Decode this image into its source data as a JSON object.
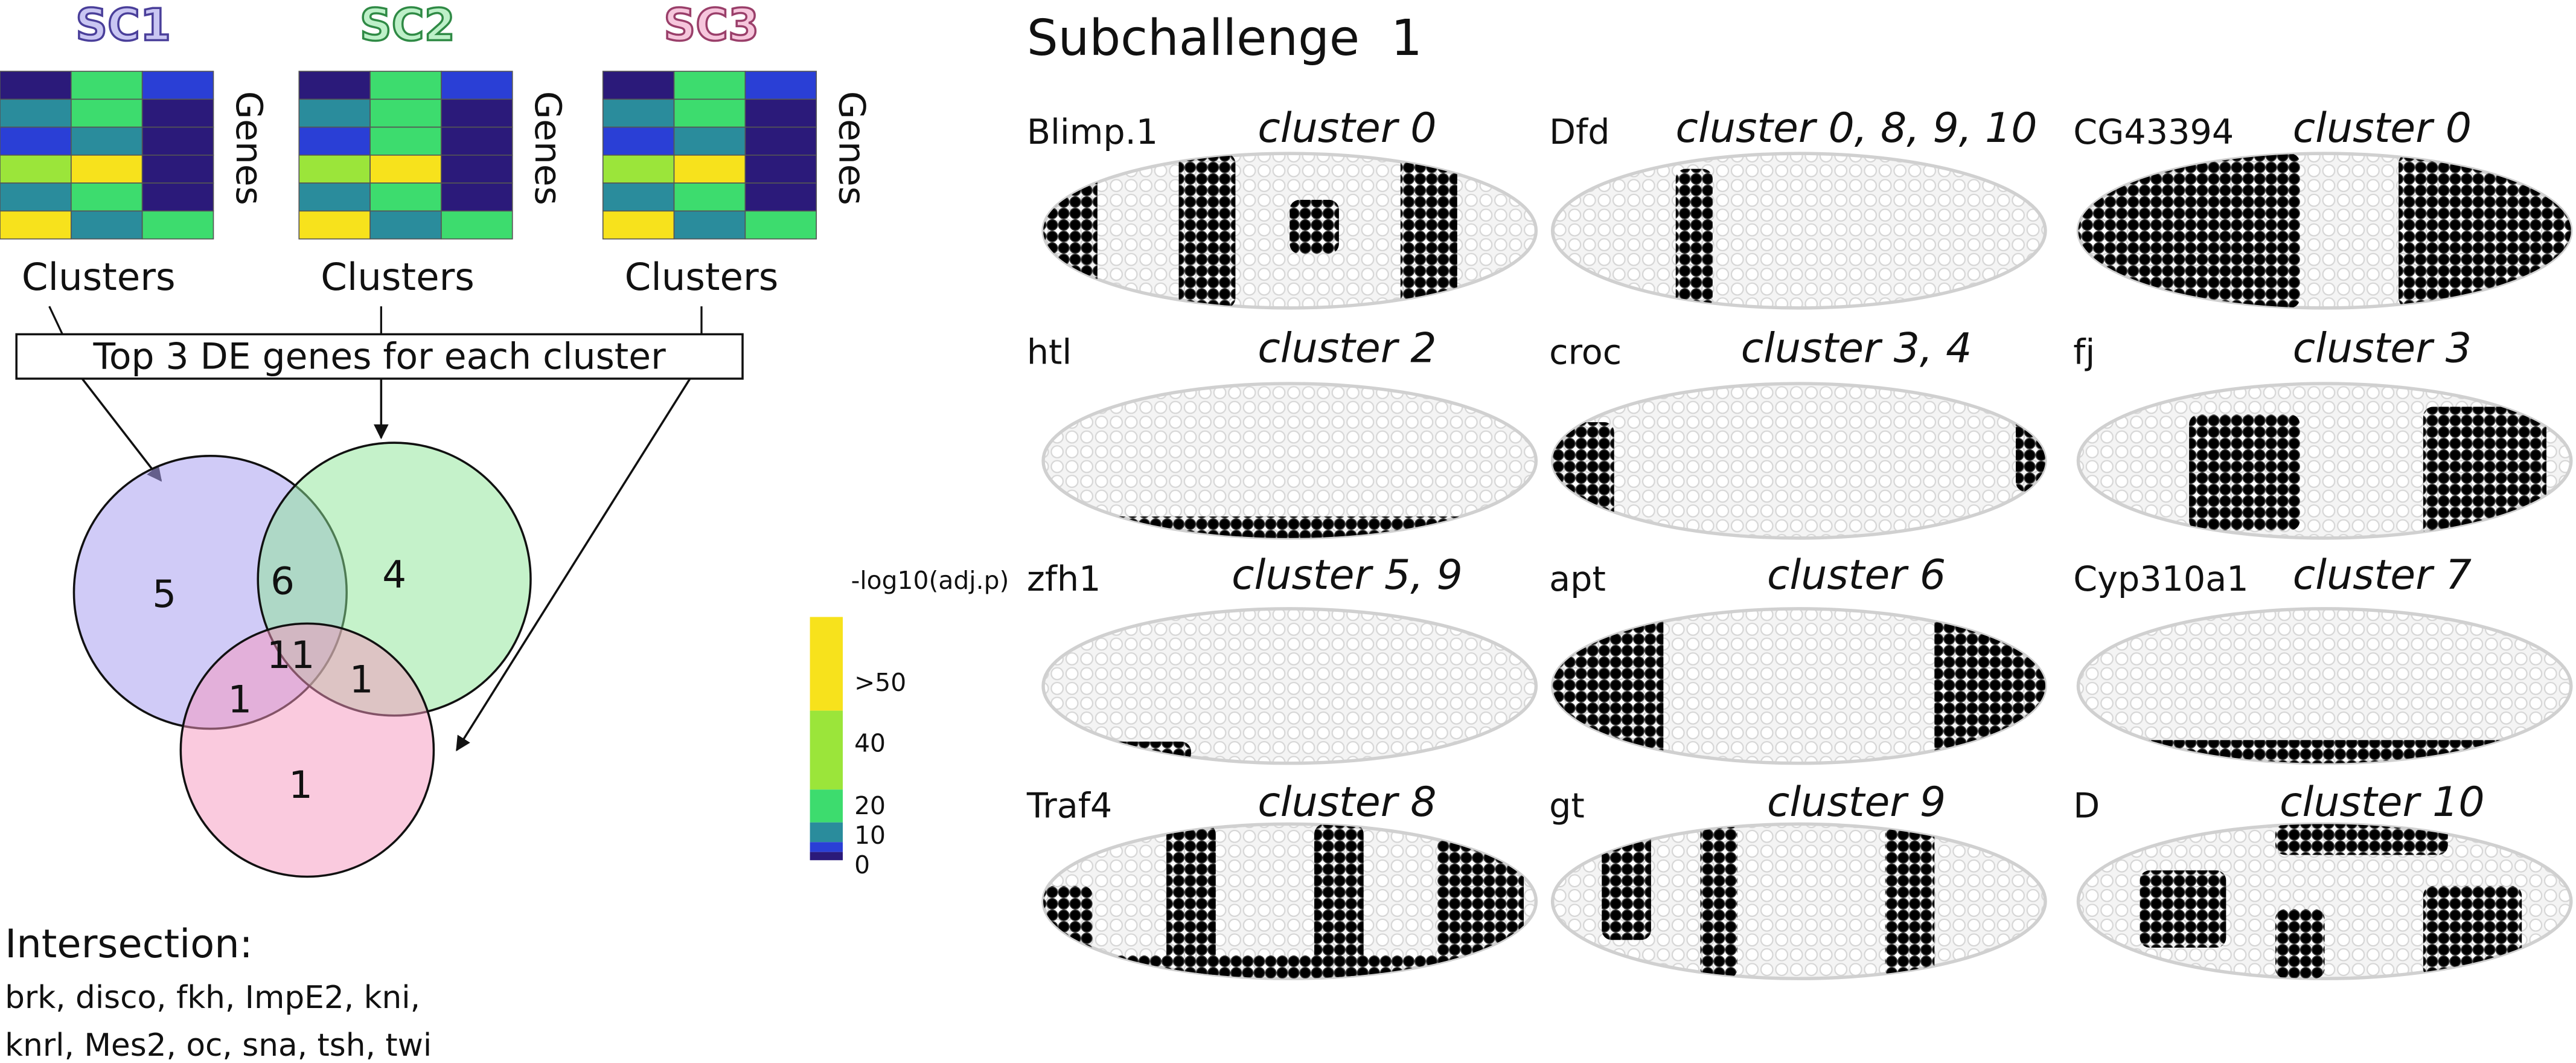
{
  "left": {
    "heatmaps": [
      {
        "label": "SC1",
        "genes_label": "Genes",
        "clusters_label": "Clusters"
      },
      {
        "label": "SC2",
        "genes_label": "Genes",
        "clusters_label": "Clusters"
      },
      {
        "label": "SC3",
        "genes_label": "Genes",
        "clusters_label": "Clusters"
      }
    ],
    "box_text": "Top 3 DE genes for each cluster",
    "venn": {
      "sc1_only": 5,
      "sc1_sc2": 6,
      "sc2_only": 4,
      "all": 11,
      "sc1_sc3": 1,
      "sc2_sc3": 1,
      "sc3_only": 1
    },
    "colorbar": {
      "title": "-log10(adj.p)",
      "labels": [
        ">50",
        "40",
        "20",
        "10",
        "0"
      ]
    },
    "intersection": {
      "title": "Intersection:",
      "lines": [
        "brk, disco, fkh, ImpE2, kni,",
        "knrl, Mes2, oc, sna, tsh, twi"
      ]
    }
  },
  "right": {
    "title": "Subchallenge  1",
    "panels": [
      {
        "gene": "Blimp.1",
        "cluster": "cluster 0"
      },
      {
        "gene": "Dfd",
        "cluster": "cluster 0, 8, 9, 10"
      },
      {
        "gene": "CG43394",
        "cluster": "cluster 0"
      },
      {
        "gene": "htl",
        "cluster": "cluster 2"
      },
      {
        "gene": "croc",
        "cluster": "cluster 3, 4"
      },
      {
        "gene": "fj",
        "cluster": "cluster 3"
      },
      {
        "gene": "zfh1",
        "cluster": "cluster 5, 9"
      },
      {
        "gene": "apt",
        "cluster": "cluster 6"
      },
      {
        "gene": "Cyp310a1",
        "cluster": "cluster 7"
      },
      {
        "gene": "Traf4",
        "cluster": "cluster 8"
      },
      {
        "gene": "gt",
        "cluster": "cluster 9"
      },
      {
        "gene": "D",
        "cluster": "cluster 10"
      }
    ]
  }
}
